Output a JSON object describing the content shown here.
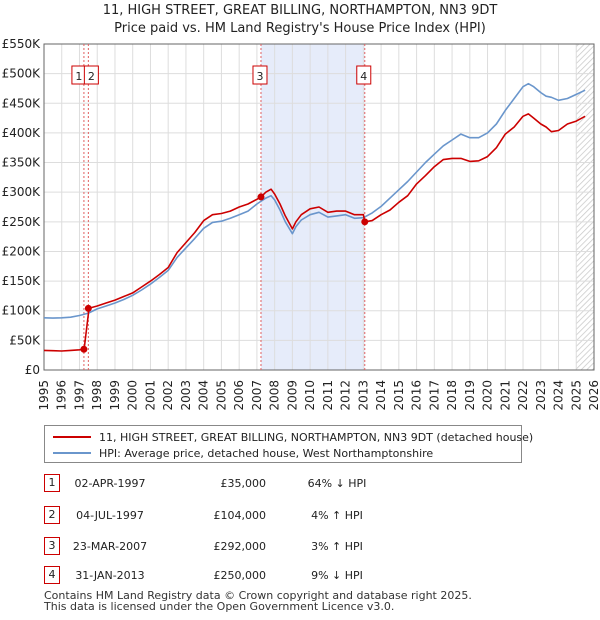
{
  "chart_data": {
    "type": "line",
    "title": "11, HIGH STREET, GREAT BILLING, NORTHAMPTON, NN3 9DT",
    "subtitle": "Price paid vs. HM Land Registry's House Price Index (HPI)",
    "xlabel": "",
    "ylabel": "",
    "xlim": [
      1995,
      2026
    ],
    "ylim": [
      0,
      550000
    ],
    "x_ticks": [
      "1995",
      "1996",
      "1997",
      "1998",
      "1999",
      "2000",
      "2001",
      "2002",
      "2003",
      "2004",
      "2005",
      "2006",
      "2007",
      "2008",
      "2009",
      "2010",
      "2011",
      "2012",
      "2013",
      "2014",
      "2015",
      "2016",
      "2017",
      "2018",
      "2019",
      "2020",
      "2021",
      "2022",
      "2023",
      "2024",
      "2025",
      "2026"
    ],
    "y_ticks": [
      {
        "value": 0,
        "label": "£0"
      },
      {
        "value": 50000,
        "label": "£50K"
      },
      {
        "value": 100000,
        "label": "£100K"
      },
      {
        "value": 150000,
        "label": "£150K"
      },
      {
        "value": 200000,
        "label": "£200K"
      },
      {
        "value": 250000,
        "label": "£250K"
      },
      {
        "value": 300000,
        "label": "£300K"
      },
      {
        "value": 350000,
        "label": "£350K"
      },
      {
        "value": 400000,
        "label": "£400K"
      },
      {
        "value": 450000,
        "label": "£450K"
      },
      {
        "value": 500000,
        "label": "£500K"
      },
      {
        "value": 550000,
        "label": "£550K"
      }
    ],
    "shaded_range": [
      2007.23,
      2013.08
    ],
    "forecast_from": 2025.0,
    "series": [
      {
        "name": "11, HIGH STREET, GREAT BILLING, NORTHAMPTON, NN3 9DT (detached house)",
        "color": "#cc0000",
        "x": [
          1995.0,
          1995.5,
          1996.0,
          1996.5,
          1997.0,
          1997.25,
          1997.26,
          1997.5,
          1997.51,
          1998.0,
          1998.5,
          1999.0,
          1999.5,
          2000.0,
          2000.5,
          2001.0,
          2001.5,
          2002.0,
          2002.5,
          2003.0,
          2003.5,
          2004.0,
          2004.5,
          2005.0,
          2005.5,
          2006.0,
          2006.5,
          2007.0,
          2007.23,
          2007.5,
          2007.8,
          2008.0,
          2008.3,
          2008.6,
          2009.0,
          2009.2,
          2009.5,
          2010.0,
          2010.5,
          2011.0,
          2011.5,
          2012.0,
          2012.5,
          2013.0,
          2013.08,
          2013.5,
          2014.0,
          2014.5,
          2015.0,
          2015.5,
          2016.0,
          2016.5,
          2017.0,
          2017.5,
          2018.0,
          2018.5,
          2019.0,
          2019.5,
          2020.0,
          2020.5,
          2021.0,
          2021.5,
          2022.0,
          2022.3,
          2022.6,
          2023.0,
          2023.3,
          2023.6,
          2024.0,
          2024.5,
          2025.0,
          2025.5
        ],
        "values": [
          33000,
          32500,
          32000,
          33000,
          34000,
          35000,
          35000,
          95000,
          104000,
          108000,
          113000,
          118000,
          124000,
          130000,
          140000,
          150000,
          161000,
          173000,
          198000,
          215000,
          232000,
          252000,
          262000,
          264000,
          268000,
          275000,
          280000,
          288000,
          292000,
          300000,
          305000,
          297000,
          280000,
          260000,
          238000,
          250000,
          262000,
          272000,
          275000,
          266000,
          268000,
          268000,
          262000,
          262000,
          250000,
          252000,
          262000,
          270000,
          283000,
          294000,
          314000,
          328000,
          343000,
          355000,
          357000,
          357000,
          352000,
          353000,
          360000,
          375000,
          398000,
          410000,
          428000,
          432000,
          425000,
          415000,
          410000,
          402000,
          404000,
          415000,
          420000,
          428000
        ]
      },
      {
        "name": "HPI: Average price, detached house, West Northamptonshire",
        "color": "#6a96cc",
        "x": [
          1995.0,
          1995.5,
          1996.0,
          1996.5,
          1997.0,
          1997.5,
          1998.0,
          1998.5,
          1999.0,
          1999.5,
          2000.0,
          2000.5,
          2001.0,
          2001.5,
          2002.0,
          2002.5,
          2003.0,
          2003.5,
          2004.0,
          2004.5,
          2005.0,
          2005.5,
          2006.0,
          2006.5,
          2007.0,
          2007.5,
          2007.8,
          2008.0,
          2008.3,
          2008.6,
          2009.0,
          2009.2,
          2009.5,
          2010.0,
          2010.5,
          2011.0,
          2011.5,
          2012.0,
          2012.5,
          2013.0,
          2013.5,
          2014.0,
          2014.5,
          2015.0,
          2015.5,
          2016.0,
          2016.5,
          2017.0,
          2017.5,
          2018.0,
          2018.5,
          2019.0,
          2019.5,
          2020.0,
          2020.5,
          2021.0,
          2021.5,
          2022.0,
          2022.3,
          2022.6,
          2023.0,
          2023.3,
          2023.6,
          2024.0,
          2024.5,
          2025.0,
          2025.5
        ],
        "values": [
          88000,
          87500,
          88000,
          89000,
          92000,
          96000,
          103000,
          108000,
          113000,
          119000,
          126000,
          135000,
          145000,
          156000,
          168000,
          190000,
          206000,
          222000,
          239000,
          249000,
          251000,
          256000,
          262000,
          268000,
          280000,
          290000,
          294000,
          287000,
          270000,
          250000,
          230000,
          242000,
          253000,
          262000,
          266000,
          258000,
          260000,
          262000,
          256000,
          257000,
          265000,
          276000,
          290000,
          304000,
          318000,
          334000,
          350000,
          364000,
          378000,
          388000,
          398000,
          392000,
          392000,
          400000,
          415000,
          438000,
          458000,
          478000,
          483000,
          478000,
          468000,
          462000,
          460000,
          455000,
          458000,
          465000,
          472000
        ]
      }
    ],
    "transactions": [
      {
        "n": "1",
        "x": 1997.25,
        "price": 35000,
        "date": "02-APR-1997",
        "price_label": "£35,000",
        "hpi": "64% ↓ HPI"
      },
      {
        "n": "2",
        "x": 1997.5,
        "price": 104000,
        "date": "04-JUL-1997",
        "price_label": "£104,000",
        "hpi": "4% ↑ HPI"
      },
      {
        "n": "3",
        "x": 2007.23,
        "price": 292000,
        "date": "23-MAR-2007",
        "price_label": "£292,000",
        "hpi": "3% ↑ HPI"
      },
      {
        "n": "4",
        "x": 2013.08,
        "price": 250000,
        "date": "31-JAN-2013",
        "price_label": "£250,000",
        "hpi": "9% ↓ HPI"
      }
    ]
  },
  "legend": {
    "property_label": "11, HIGH STREET, GREAT BILLING, NORTHAMPTON, NN3 9DT (detached house)",
    "hpi_label": "HPI: Average price, detached house, West Northamptonshire",
    "property_color": "#cc0000",
    "hpi_color": "#6a96cc"
  },
  "footer": {
    "line1": "Contains HM Land Registry data © Crown copyright and database right 2025.",
    "line2": "This data is licensed under the Open Government Licence v3.0."
  }
}
